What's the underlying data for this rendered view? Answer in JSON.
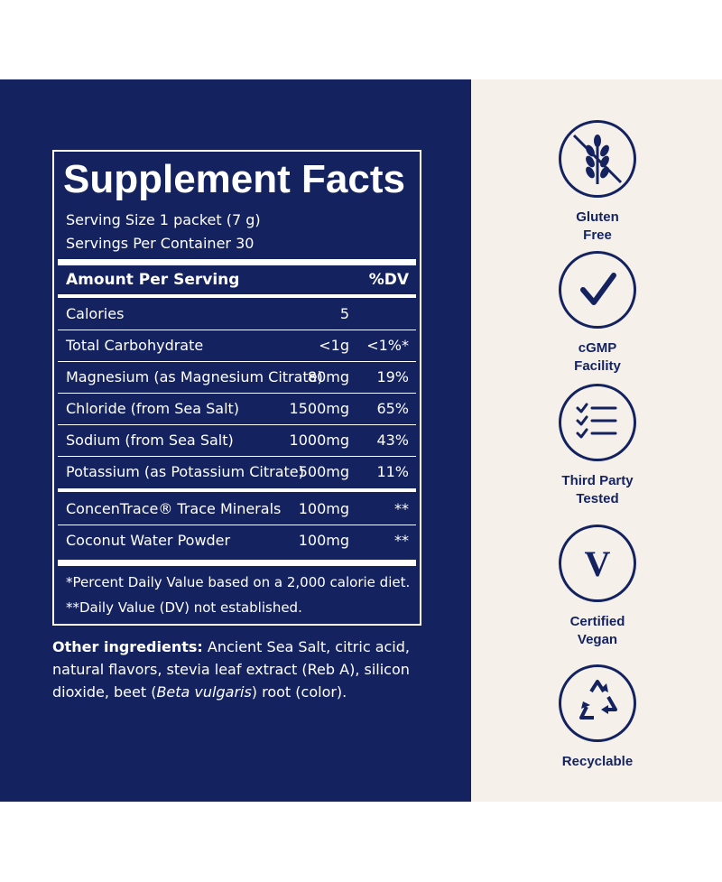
{
  "facts": {
    "title": "Supplement Facts",
    "serving_size": "Serving Size 1 packet (7 g)",
    "servings_per_container": "Servings Per Container 30",
    "header_amount": "Amount Per Serving",
    "header_dv": "%DV",
    "rows": [
      {
        "name": "Calories",
        "amount": "5",
        "dv": ""
      },
      {
        "name": "Total Carbohydrate",
        "amount": "<1g",
        "dv": "<1%*"
      },
      {
        "name": "Magnesium (as Magnesium Citrate)",
        "amount": "80mg",
        "dv": "19%"
      },
      {
        "name": "Chloride (from Sea Salt)",
        "amount": "1500mg",
        "dv": "65%"
      },
      {
        "name": "Sodium (from Sea Salt)",
        "amount": "1000mg",
        "dv": "43%"
      },
      {
        "name": "Potassium (as Potassium Citrate)",
        "amount": "500mg",
        "dv": "11%"
      }
    ],
    "extra_rows": [
      {
        "name": "ConcenTrace® Trace Minerals",
        "amount": "100mg",
        "dv": "**"
      },
      {
        "name": "Coconut Water Powder",
        "amount": "100mg",
        "dv": "**"
      }
    ],
    "footnote_1": "*Percent Daily Value based on a 2,000 calorie diet.",
    "footnote_2": "**Daily Value (DV) not established."
  },
  "other_ingredients": {
    "label": "Other ingredients:",
    "text_1": " Ancient Sea Salt, citric acid, natural flavors, stevia leaf extract (Reb A), silicon dioxide, beet (",
    "italic": "Beta vulgaris",
    "text_2": ") root (color)."
  },
  "badges": [
    {
      "label_line1": "Gluten",
      "label_line2": "Free",
      "icon": "gluten-free-icon"
    },
    {
      "label_line1": "cGMP",
      "label_line2": "Facility",
      "icon": "checkmark-icon"
    },
    {
      "label_line1": "Third Party",
      "label_line2": "Tested",
      "icon": "checklist-icon"
    },
    {
      "label_line1": "Certified",
      "label_line2": "Vegan",
      "icon": "vegan-v-icon"
    },
    {
      "label_line1": "Recyclable",
      "label_line2": "",
      "icon": "recycle-icon"
    }
  ],
  "colors": {
    "navy": "#14235f",
    "cream": "#f5f1ea",
    "white": "#ffffff"
  }
}
